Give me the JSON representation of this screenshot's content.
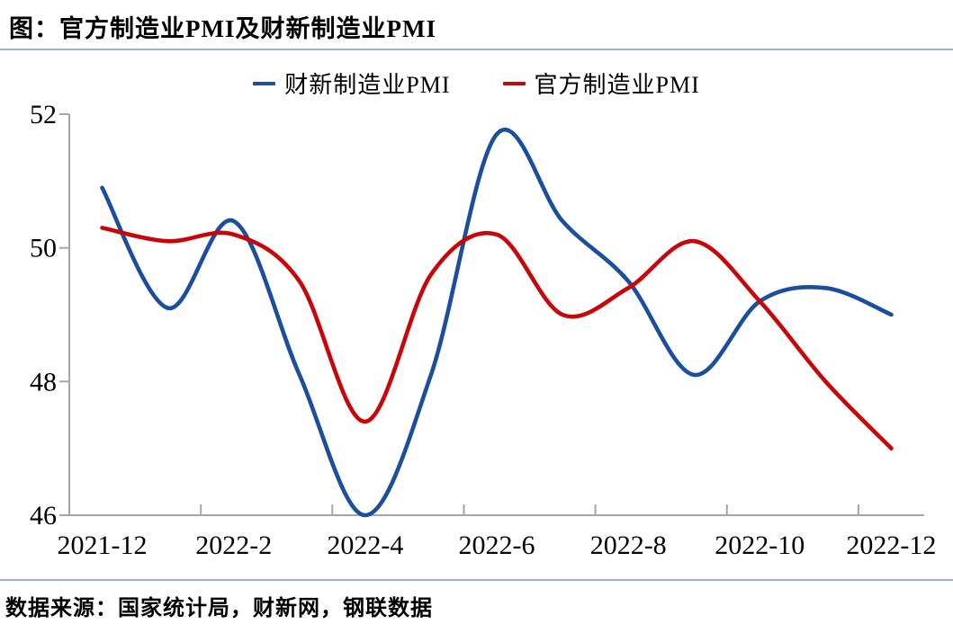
{
  "header": {
    "title": "图：官方制造业PMI及财新制造业PMI"
  },
  "footer": {
    "source": "数据来源：国家统计局，财新网，钢联数据"
  },
  "colors": {
    "caixin_blue": "#1C4E9E",
    "official_red": "#C8060A",
    "axis": "#A6A6A6",
    "rule": "#9FB3D1"
  },
  "chart_data": {
    "type": "line",
    "title": "官方制造业PMI及财新制造业PMI",
    "categories": [
      "2021-12",
      "2022-1",
      "2022-2",
      "2022-3",
      "2022-4",
      "2022-5",
      "2022-6",
      "2022-7",
      "2022-8",
      "2022-9",
      "2022-10",
      "2022-11",
      "2022-12"
    ],
    "x_ticklabels": [
      "2021-12",
      "2022-2",
      "2022-4",
      "2022-6",
      "2022-8",
      "2022-10",
      "2022-12"
    ],
    "y_ticklabels": [
      "52",
      "50",
      "48",
      "46"
    ],
    "ylim": [
      46,
      52
    ],
    "y_tick_interval": 2,
    "grid": false,
    "smooth": true,
    "legend_position": "top",
    "xlabel": "",
    "ylabel": "",
    "series": [
      {
        "name": "财新制造业PMI",
        "color": "#1C4E9E",
        "values": [
          50.9,
          49.1,
          50.4,
          48.1,
          46.0,
          48.1,
          51.7,
          50.4,
          49.5,
          48.1,
          49.2,
          49.4,
          49.0
        ]
      },
      {
        "name": "官方制造业PMI",
        "color": "#C8060A",
        "values": [
          50.3,
          50.1,
          50.2,
          49.5,
          47.4,
          49.6,
          50.2,
          49.0,
          49.4,
          50.1,
          49.2,
          48.0,
          47.0
        ]
      }
    ],
    "source": "数据来源：国家统计局，财新网，钢联数据"
  }
}
